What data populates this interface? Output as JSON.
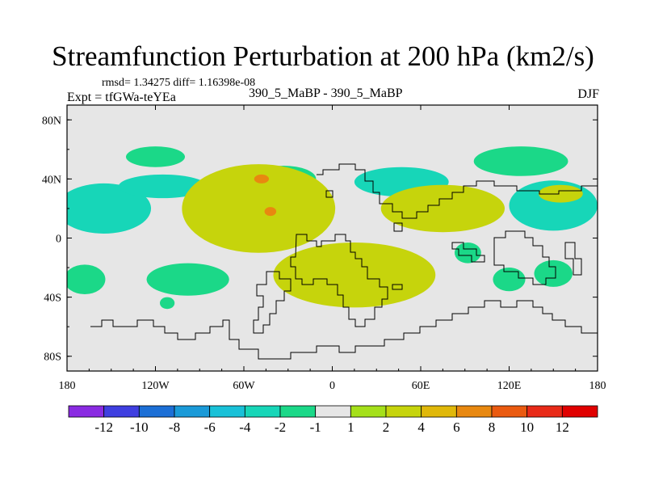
{
  "chart_data": {
    "type": "contour-map",
    "title": "Streamfunction Perturbation at 200 hPa (km2/s)",
    "stats_text": "rmsd= 1.34275 diff= 1.16398e-08",
    "experiment": "Expt = tfGWa-teYEa",
    "case": "390_5_MaBP - 390_5_MaBP",
    "season": "DJF",
    "x_range": [
      -180,
      180
    ],
    "y_range": [
      -90,
      90
    ],
    "x_ticks": [
      {
        "value": -180,
        "label": "180"
      },
      {
        "value": -120,
        "label": "120W"
      },
      {
        "value": -60,
        "label": "60W"
      },
      {
        "value": 0,
        "label": "0"
      },
      {
        "value": 60,
        "label": "60E"
      },
      {
        "value": 120,
        "label": "120E"
      },
      {
        "value": 180,
        "label": "180"
      }
    ],
    "y_ticks": [
      {
        "value": 80,
        "label": "80N"
      },
      {
        "value": 40,
        "label": "40N"
      },
      {
        "value": 0,
        "label": "0"
      },
      {
        "value": -40,
        "label": "40S"
      },
      {
        "value": -80,
        "label": "80S"
      }
    ],
    "levels": [
      -12,
      -10,
      -8,
      -6,
      -4,
      -2,
      -1,
      1,
      2,
      4,
      6,
      8,
      10,
      12
    ],
    "colorbar_labels": [
      "-12",
      "-10",
      "-8",
      "-6",
      "-4",
      "-2",
      "-1",
      "1",
      "2",
      "4",
      "6",
      "8",
      "10",
      "12"
    ],
    "colors": [
      "#8a2be2",
      "#3f3fe0",
      "#1c6fd6",
      "#1a9ad8",
      "#19c1d8",
      "#17d6b8",
      "#1bd888",
      "#e6e6e6",
      "#a5e01a",
      "#c6d40c",
      "#e0b80a",
      "#e88810",
      "#ea5a10",
      "#e82a18",
      "#e00000"
    ],
    "anomalies": [
      {
        "lon": -155,
        "lat": 20,
        "rlon": 32,
        "rlat": 17,
        "value": -3
      },
      {
        "lon": -120,
        "lat": 55,
        "rlon": 20,
        "rlat": 7,
        "value": -1.5
      },
      {
        "lon": -115,
        "lat": 35,
        "rlon": 30,
        "rlat": 8,
        "value": -2.5
      },
      {
        "lon": -168,
        "lat": -28,
        "rlon": 14,
        "rlat": 10,
        "value": -1.5
      },
      {
        "lon": -98,
        "lat": -28,
        "rlon": 28,
        "rlat": 11,
        "value": -1.5
      },
      {
        "lon": -33,
        "lat": 40,
        "rlon": 22,
        "rlat": 9,
        "value": -1.5
      },
      {
        "lon": 47,
        "lat": 38,
        "rlon": 32,
        "rlat": 10,
        "value": -2.5
      },
      {
        "lon": 128,
        "lat": 52,
        "rlon": 32,
        "rlat": 10,
        "value": -1.5
      },
      {
        "lon": 150,
        "lat": 22,
        "rlon": 30,
        "rlat": 17,
        "value": -3
      },
      {
        "lon": 92,
        "lat": -10,
        "rlon": 9,
        "rlat": 7,
        "value": -1.5
      },
      {
        "lon": 120,
        "lat": -28,
        "rlon": 11,
        "rlat": 8,
        "value": -1.5
      },
      {
        "lon": 150,
        "lat": -24,
        "rlon": 13,
        "rlat": 9,
        "value": -1.5
      },
      {
        "lon": -112,
        "lat": -44,
        "rlon": 5,
        "rlat": 4,
        "value": -1.5
      },
      {
        "lon": -50,
        "lat": 20,
        "rlon": 52,
        "rlat": 30,
        "value": 2.5
      },
      {
        "lon": -42,
        "lat": 18,
        "rlon": 4,
        "rlat": 3,
        "value": 6
      },
      {
        "lon": 15,
        "lat": -25,
        "rlon": 55,
        "rlat": 22,
        "value": 2.5
      },
      {
        "lon": 75,
        "lat": 20,
        "rlon": 42,
        "rlat": 16,
        "value": 2.5
      },
      {
        "lon": 155,
        "lat": 30,
        "rlon": 15,
        "rlat": 6,
        "value": 2.5
      },
      {
        "lon": -48,
        "lat": 40,
        "rlon": 5,
        "rlat": 3,
        "value": 6
      }
    ]
  }
}
